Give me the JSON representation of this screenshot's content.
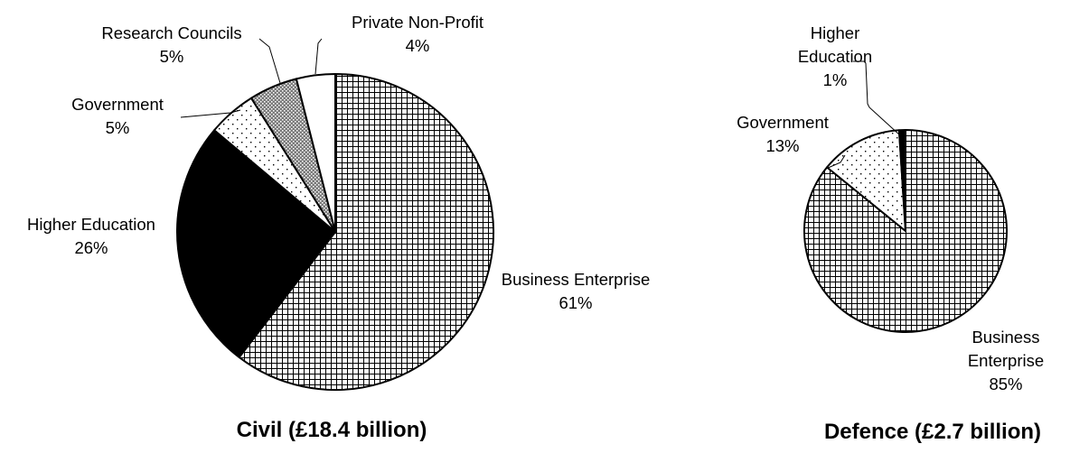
{
  "chart_data": [
    {
      "type": "pie",
      "title": "Civil (£18.4 billion)",
      "slices": [
        {
          "category": "Business Enterprise",
          "pct_label": "61%",
          "value": 61,
          "pattern": "grid"
        },
        {
          "category": "Higher Education",
          "pct_label": "26%",
          "value": 26,
          "pattern": "solid-black"
        },
        {
          "category": "Government",
          "pct_label": "5%",
          "value": 5,
          "pattern": "sparse-dots"
        },
        {
          "category": "Research Councils",
          "pct_label": "5%",
          "value": 5,
          "pattern": "dense-dots"
        },
        {
          "category": "Private Non-Profit",
          "pct_label": "4%",
          "value": 4,
          "pattern": "white"
        }
      ]
    },
    {
      "type": "pie",
      "title": "Defence (£2.7 billion)",
      "slices": [
        {
          "category": "Business Enterprise",
          "pct_label": "85%",
          "value": 85,
          "pattern": "grid"
        },
        {
          "category": "Government",
          "pct_label": "13%",
          "value": 13,
          "pattern": "sparse-dots"
        },
        {
          "category": "Higher Education",
          "pct_label": "1%",
          "value": 1,
          "pattern": "solid-black"
        }
      ]
    }
  ],
  "colors": {
    "stroke": "#000000",
    "fill_dark": "#000000",
    "fill_light": "#ffffff"
  }
}
